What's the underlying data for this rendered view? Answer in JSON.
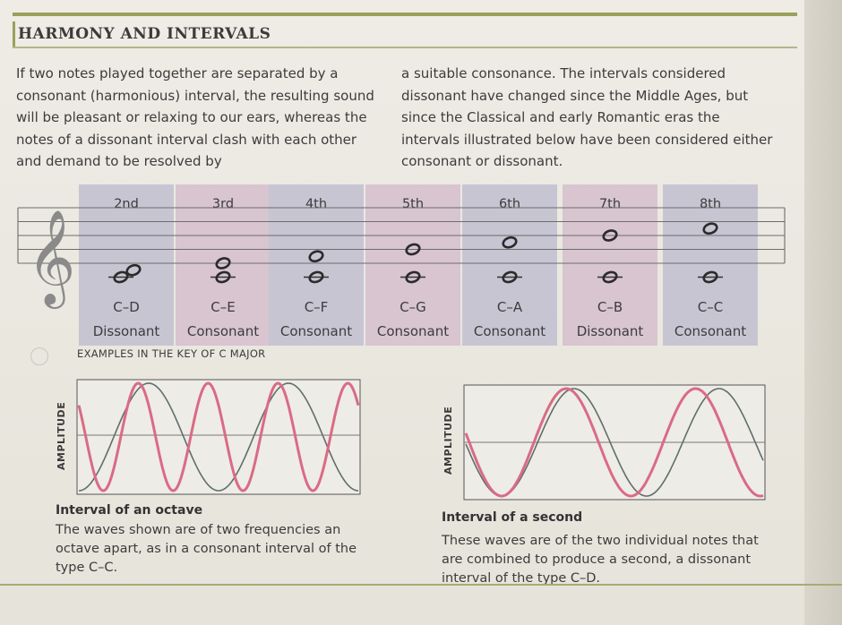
{
  "heading": "HARMONY AND INTERVALS",
  "intro_left": "If two notes played together are separated by a consonant (harmonious) interval, the resulting sound will be pleasant or relaxing to our ears, whereas the notes of a dissonant interval clash with each other and demand to be resolved by",
  "intro_right": "a suitable consonance. The intervals considered dissonant have changed since the Middle Ages, but since the Classical and early Romantic eras the intervals illustrated below have been considered either consonant or dissonant.",
  "intervals": [
    {
      "label": "2nd",
      "pair": "C–D",
      "type": "Dissonant"
    },
    {
      "label": "3rd",
      "pair": "C–E",
      "type": "Consonant"
    },
    {
      "label": "4th",
      "pair": "C–F",
      "type": "Consonant"
    },
    {
      "label": "5th",
      "pair": "C–G",
      "type": "Consonant"
    },
    {
      "label": "6th",
      "pair": "C–A",
      "type": "Consonant"
    },
    {
      "label": "7th",
      "pair": "C–B",
      "type": "Dissonant"
    },
    {
      "label": "8th",
      "pair": "C–C",
      "type": "Consonant"
    }
  ],
  "examples_label": "EXAMPLES IN THE KEY OF C MAJOR",
  "amplitude_label": "AMPLITUDE",
  "octave": {
    "title": "Interval of an octave",
    "body": "The waves shown are of two frequencies an octave apart, as in a consonant interval of the type C–C."
  },
  "second": {
    "title": "Interval of a second",
    "body": "These waves are of the two individual notes that are combined to produce a second, a dissonant interval of the type C–D."
  },
  "colors": {
    "accent": "#9aa05a",
    "column_blue": "#c8c5d3",
    "column_pink": "#d8c5d0",
    "wave_pink": "#d96b86",
    "wave_grey": "#5f6e6c"
  }
}
